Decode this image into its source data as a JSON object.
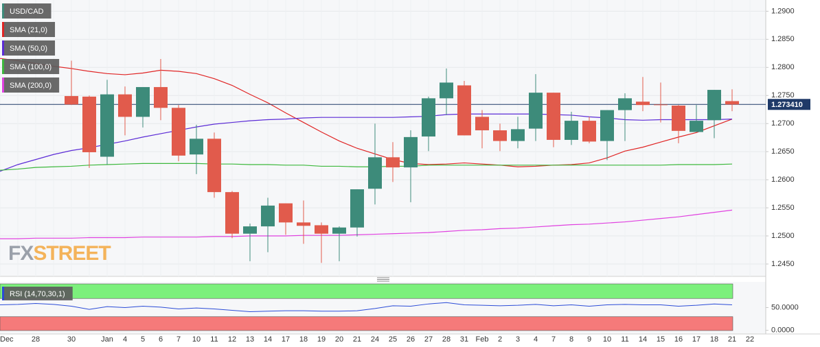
{
  "chart_data": {
    "type": "candlestick",
    "symbol": "USD/CAD",
    "categories": [
      "Dec",
      null,
      "28",
      null,
      "30",
      null,
      "Jan",
      "4",
      "5",
      "6",
      "7",
      "10",
      "11",
      "12",
      "13",
      "14",
      "17",
      "18",
      "19",
      "20",
      "21",
      "24",
      "25",
      "26",
      "27",
      "28",
      "31",
      "Feb",
      "2",
      "3",
      "4",
      "7",
      "8",
      "9",
      "10",
      "11",
      "14",
      "15",
      "16",
      "17",
      "18",
      "21",
      "22"
    ],
    "open": [
      null,
      null,
      null,
      null,
      1.2749,
      1.2748,
      1.2641,
      1.2752,
      1.2712,
      1.2765,
      1.2728,
      1.2645,
      1.2673,
      1.2578,
      1.2504,
      1.2517,
      1.2558,
      1.2524,
      1.2519,
      1.2504,
      1.2515,
      1.2584,
      1.264,
      1.2622,
      1.2677,
      1.2745,
      1.2768,
      1.2712,
      1.2688,
      1.2669,
      1.2691,
      1.2755,
      1.2671,
      1.2705,
      1.2669,
      1.2724,
      1.2739,
      1.2734,
      1.2732,
      1.2685,
      1.2706,
      1.274,
      null
    ],
    "high": [
      null,
      null,
      null,
      null,
      1.2812,
      1.275,
      1.2778,
      1.2766,
      1.2765,
      1.2815,
      1.2733,
      1.2698,
      1.2684,
      1.258,
      1.2522,
      1.2568,
      1.2558,
      1.2563,
      1.2524,
      1.2517,
      1.2583,
      1.27,
      1.2667,
      1.2688,
      1.2748,
      1.2798,
      1.2776,
      1.2724,
      1.27,
      1.2712,
      1.2788,
      1.2755,
      1.2721,
      1.2712,
      1.2724,
      1.2754,
      1.2783,
      1.2773,
      1.2733,
      1.2733,
      1.276,
      1.2761,
      null
    ],
    "low": [
      null,
      null,
      null,
      null,
      1.2733,
      1.2621,
      1.2627,
      1.2679,
      1.2693,
      1.2706,
      1.2633,
      1.261,
      1.2568,
      1.2496,
      1.2455,
      1.2471,
      1.2502,
      1.2486,
      1.2452,
      1.2455,
      1.2499,
      1.2556,
      1.2596,
      1.256,
      1.2651,
      1.2715,
      1.2679,
      1.2656,
      1.2651,
      1.2656,
      1.2669,
      1.2658,
      1.2662,
      1.2665,
      1.2635,
      1.2669,
      1.2722,
      1.2702,
      1.2665,
      1.2685,
      1.2674,
      1.2722,
      null
    ],
    "close": [
      null,
      null,
      null,
      null,
      1.2734,
      1.2649,
      1.2752,
      1.2712,
      1.2765,
      1.2728,
      1.2643,
      1.2673,
      1.2578,
      1.2504,
      1.2517,
      1.2554,
      1.2524,
      1.2518,
      1.2504,
      1.2515,
      1.2583,
      1.264,
      1.2622,
      1.2676,
      1.2745,
      1.2773,
      1.2679,
      1.2688,
      1.2669,
      1.269,
      1.2755,
      1.2671,
      1.2705,
      1.2668,
      1.2724,
      1.2745,
      1.2733,
      1.2733,
      1.2687,
      1.2705,
      1.276,
      1.2734,
      null
    ],
    "up_color": "#3d8b7a",
    "down_color": "#e15b4c",
    "ylim": [
      1.2428,
      1.292
    ],
    "yticks": [
      {
        "value": 1.245,
        "label": "1.2450"
      },
      {
        "value": 1.25,
        "label": "1.2500"
      },
      {
        "value": 1.255,
        "label": "1.2550"
      },
      {
        "value": 1.26,
        "label": "1.2600"
      },
      {
        "value": 1.265,
        "label": "1.2650"
      },
      {
        "value": 1.27,
        "label": "1.2700"
      },
      {
        "value": 1.275,
        "label": "1.2750"
      },
      {
        "value": 1.28,
        "label": "1.2800"
      },
      {
        "value": 1.285,
        "label": "1.2850"
      },
      {
        "value": 1.29,
        "label": "1.2900"
      }
    ],
    "grid": true,
    "last_price": {
      "value": 1.27341,
      "label": "1.273410"
    },
    "last_price_color": "#1f3a68",
    "series": [
      {
        "name": "SMA (21,0)",
        "color": "#e02424",
        "values": [
          1.2816,
          1.2812,
          1.2807,
          1.2802,
          1.2798,
          1.2793,
          1.2789,
          1.2787,
          1.279,
          1.2795,
          1.2793,
          1.2789,
          1.278,
          1.2768,
          1.2752,
          1.2737,
          1.2719,
          1.2702,
          1.2685,
          1.2669,
          1.2656,
          1.2646,
          1.2636,
          1.2629,
          1.2627,
          1.2628,
          1.263,
          1.2628,
          1.2626,
          1.2623,
          1.2624,
          1.2626,
          1.2627,
          1.263,
          1.2639,
          1.2651,
          1.2658,
          1.2667,
          1.2676,
          1.2684,
          1.2696,
          1.2708,
          null
        ]
      },
      {
        "name": "SMA (50,0)",
        "color": "#5b2bd6",
        "values": [
          1.2615,
          1.2627,
          1.2636,
          1.2645,
          1.2652,
          1.2657,
          1.2663,
          1.2669,
          1.2676,
          1.2682,
          1.2688,
          1.2694,
          1.2699,
          1.2702,
          1.2705,
          1.2707,
          1.2708,
          1.271,
          1.2711,
          1.2711,
          1.2711,
          1.2711,
          1.2711,
          1.2712,
          1.2713,
          1.2716,
          1.2717,
          1.2717,
          1.2717,
          1.2717,
          1.2717,
          1.2716,
          1.2715,
          1.2712,
          1.271,
          1.2707,
          1.2706,
          1.2707,
          1.2707,
          1.2707,
          1.2707,
          1.2708,
          null
        ]
      },
      {
        "name": "SMA (100,0)",
        "color": "#3cb83c",
        "values": [
          1.2617,
          1.2619,
          1.2622,
          1.2623,
          1.2624,
          1.2626,
          1.2627,
          1.2628,
          1.2629,
          1.2629,
          1.2629,
          1.2629,
          1.2628,
          1.2628,
          1.2627,
          1.2627,
          1.2626,
          1.2626,
          1.2624,
          1.2624,
          1.2623,
          1.2623,
          1.2624,
          1.2624,
          1.2626,
          1.2626,
          1.2626,
          1.2626,
          1.2626,
          1.2626,
          1.2626,
          1.2626,
          1.2626,
          1.2626,
          1.2626,
          1.2626,
          1.2626,
          1.2626,
          1.2627,
          1.2627,
          1.2627,
          1.2628,
          null
        ]
      },
      {
        "name": "SMA (200,0)",
        "color": "#e040e0",
        "values": [
          1.2495,
          1.2495,
          1.2496,
          1.2496,
          1.2496,
          1.2497,
          1.2497,
          1.2497,
          1.2498,
          1.2498,
          1.2498,
          1.2498,
          1.2499,
          1.2499,
          1.25,
          1.25,
          1.25,
          1.2501,
          1.2501,
          1.2501,
          1.2502,
          1.2503,
          1.2504,
          1.2505,
          1.2506,
          1.2508,
          1.251,
          1.2511,
          1.2513,
          1.2514,
          1.2516,
          1.2518,
          1.252,
          1.2521,
          1.2523,
          1.2525,
          1.2528,
          1.2531,
          1.2534,
          1.2538,
          1.2542,
          1.2546,
          null
        ]
      }
    ],
    "watermark": [
      "FX",
      "STREET"
    ],
    "rsi": {
      "name": "RSI (14,70,30,1)",
      "color": "#2a4bd7",
      "values": [
        56,
        57,
        59,
        57,
        53,
        46,
        52,
        50,
        53,
        51,
        47,
        49,
        47,
        44,
        41,
        42,
        43,
        43,
        42,
        42,
        43,
        48,
        54,
        53,
        58,
        61,
        56,
        55,
        54,
        55,
        57,
        54,
        56,
        53,
        56,
        57,
        56,
        56,
        53,
        55,
        58,
        56,
        null
      ],
      "ylim": [
        -5,
        105
      ],
      "yticks": [
        {
          "value": 0,
          "label": "0.0000"
        },
        {
          "value": 50,
          "label": "50.0000"
        }
      ],
      "overbought": 70,
      "oversold": 30,
      "overbought_color": "#7cf07c",
      "oversold_color": "#f57a7a"
    }
  }
}
